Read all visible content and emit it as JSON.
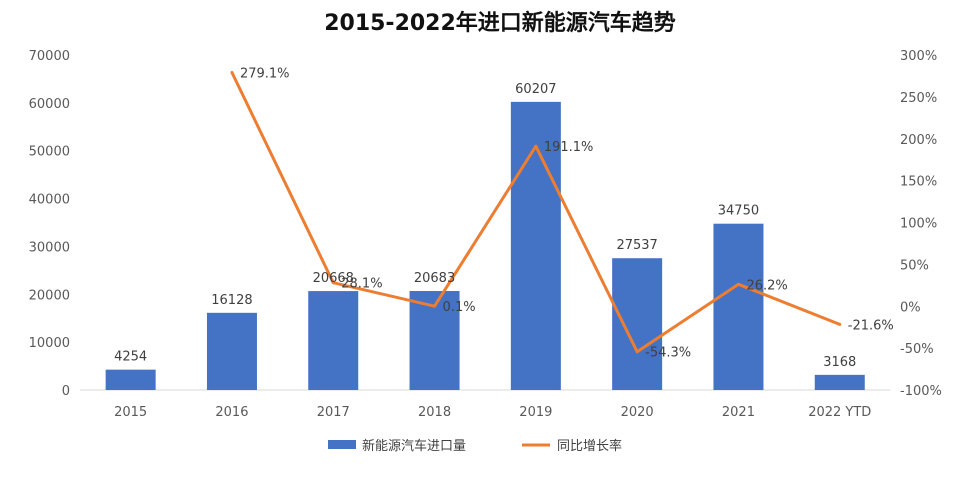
{
  "chart_data": {
    "type": "bar",
    "title": "2015-2022年进口新能源汽车趋势",
    "categories": [
      "2015",
      "2016",
      "2017",
      "2018",
      "2019",
      "2020",
      "2021",
      "2022 YTD"
    ],
    "series": [
      {
        "name": "新能源汽车进口量",
        "type": "bar",
        "axis": "left",
        "color": "#4472C4",
        "values": [
          4254,
          16128,
          20668,
          20683,
          60207,
          27537,
          34750,
          3168
        ],
        "labels": [
          "4254",
          "16128",
          "20668",
          "20683",
          "60207",
          "27537",
          "34750",
          "3168"
        ]
      },
      {
        "name": "同比增长率",
        "type": "line",
        "axis": "right",
        "color": "#ED7D31",
        "values": [
          null,
          279.1,
          28.1,
          0.1,
          191.1,
          -54.3,
          26.2,
          -21.6
        ],
        "labels": [
          "",
          "279.1%",
          "28.1%",
          "0.1%",
          "191.1%",
          "-54.3%",
          "26.2%",
          "-21.6%"
        ]
      }
    ],
    "yleft": {
      "ylim": [
        0,
        70000
      ],
      "ticks": [
        "0",
        "10000",
        "20000",
        "30000",
        "40000",
        "50000",
        "60000",
        "70000"
      ]
    },
    "yright": {
      "ylim": [
        -100,
        300
      ],
      "ticks": [
        "-100%",
        "-50%",
        "0%",
        "50%",
        "100%",
        "150%",
        "200%",
        "250%",
        "300%"
      ]
    },
    "grid": false,
    "legend": "bottom"
  }
}
